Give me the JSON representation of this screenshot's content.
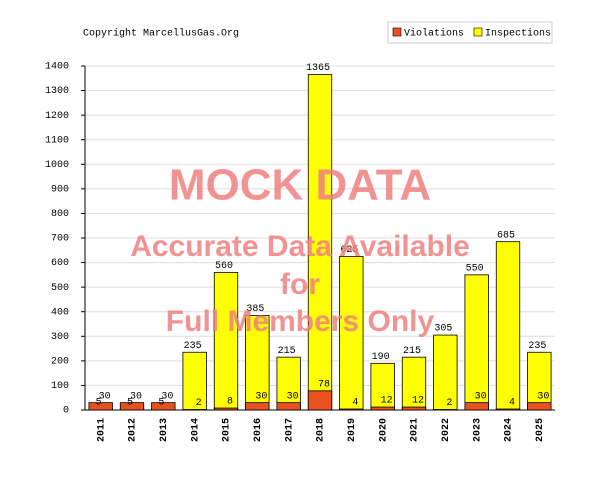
{
  "chart_data": {
    "type": "bar",
    "subtitle": "Copyright MarcellusGas.Org",
    "categories": [
      "2011",
      "2012",
      "2013",
      "2014",
      "2015",
      "2016",
      "2017",
      "2018",
      "2019",
      "2020",
      "2021",
      "2022",
      "2023",
      "2024",
      "2025"
    ],
    "series": [
      {
        "name": "Violations",
        "color": "#e8501e",
        "values": [
          30,
          30,
          30,
          2,
          8,
          30,
          30,
          78,
          4,
          12,
          12,
          2,
          30,
          4,
          30
        ]
      },
      {
        "name": "Inspections",
        "color": "#ffff00",
        "values": [
          5,
          5,
          5,
          235,
          560,
          385,
          215,
          1365,
          625,
          190,
          215,
          305,
          550,
          685,
          235
        ]
      }
    ],
    "ylim": [
      0,
      1400
    ],
    "yticks": [
      0,
      100,
      200,
      300,
      400,
      500,
      600,
      700,
      800,
      900,
      1000,
      1100,
      1200,
      1300,
      1400
    ],
    "grid": true,
    "legend": "top-right",
    "watermark": [
      "MOCK DATA",
      "Accurate Data Available",
      "for",
      "Full Members Only"
    ]
  }
}
